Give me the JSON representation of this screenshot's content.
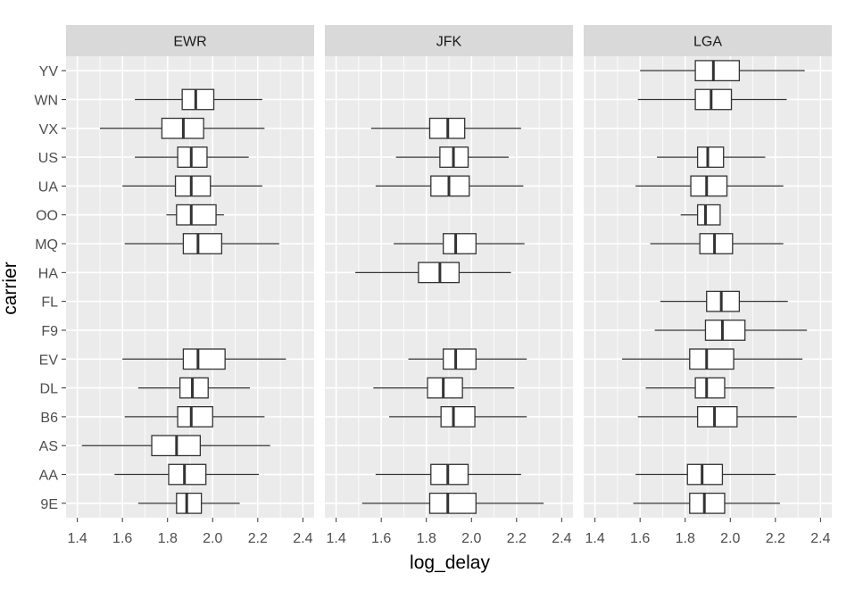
{
  "chart_data": {
    "type": "boxplot",
    "xlabel": "log_delay",
    "ylabel": "carrier",
    "xlim": [
      1.35,
      2.45
    ],
    "xticks": [
      1.4,
      1.6,
      1.8,
      2.0,
      2.2,
      2.4
    ],
    "xtick_labels": [
      "1.4",
      "1.6",
      "1.8",
      "2.0",
      "2.2",
      "2.4"
    ],
    "categories": [
      "YV",
      "WN",
      "VX",
      "US",
      "UA",
      "OO",
      "MQ",
      "HA",
      "FL",
      "F9",
      "EV",
      "DL",
      "B6",
      "AS",
      "AA",
      "9E"
    ],
    "grid": true,
    "colors": {
      "panel_bg": "#ebebeb",
      "strip_bg": "#d9d9d9",
      "grid": "#ffffff",
      "box_fill": "#ffffff",
      "box_line": "#333333",
      "text": "#4d4d4d",
      "title": "#000000"
    },
    "facets": [
      {
        "name": "EWR",
        "boxes": [
          {
            "carrier": "WN",
            "whisker_low": 1.655,
            "q1": 1.865,
            "median": 1.925,
            "q3": 2.005,
            "whisker_high": 2.22
          },
          {
            "carrier": "VX",
            "whisker_low": 1.5,
            "q1": 1.775,
            "median": 1.87,
            "q3": 1.96,
            "whisker_high": 2.23
          },
          {
            "carrier": "US",
            "whisker_low": 1.655,
            "q1": 1.845,
            "median": 1.905,
            "q3": 1.975,
            "whisker_high": 2.16
          },
          {
            "carrier": "UA",
            "whisker_low": 1.6,
            "q1": 1.835,
            "median": 1.905,
            "q3": 1.99,
            "whisker_high": 2.22
          },
          {
            "carrier": "OO",
            "whisker_low": 1.795,
            "q1": 1.84,
            "median": 1.905,
            "q3": 2.015,
            "whisker_high": 2.05
          },
          {
            "carrier": "MQ",
            "whisker_low": 1.61,
            "q1": 1.87,
            "median": 1.935,
            "q3": 2.04,
            "whisker_high": 2.295
          },
          {
            "carrier": "EV",
            "whisker_low": 1.6,
            "q1": 1.87,
            "median": 1.935,
            "q3": 2.055,
            "whisker_high": 2.325
          },
          {
            "carrier": "DL",
            "whisker_low": 1.67,
            "q1": 1.855,
            "median": 1.91,
            "q3": 1.98,
            "whisker_high": 2.165
          },
          {
            "carrier": "B6",
            "whisker_low": 1.61,
            "q1": 1.845,
            "median": 1.905,
            "q3": 2.0,
            "whisker_high": 2.23
          },
          {
            "carrier": "AS",
            "whisker_low": 1.42,
            "q1": 1.73,
            "median": 1.84,
            "q3": 1.945,
            "whisker_high": 2.255
          },
          {
            "carrier": "AA",
            "whisker_low": 1.565,
            "q1": 1.805,
            "median": 1.875,
            "q3": 1.97,
            "whisker_high": 2.205
          },
          {
            "carrier": "9E",
            "whisker_low": 1.67,
            "q1": 1.84,
            "median": 1.885,
            "q3": 1.95,
            "whisker_high": 2.12
          }
        ]
      },
      {
        "name": "JFK",
        "boxes": [
          {
            "carrier": "VX",
            "whisker_low": 1.555,
            "q1": 1.815,
            "median": 1.895,
            "q3": 1.97,
            "whisker_high": 2.22
          },
          {
            "carrier": "US",
            "whisker_low": 1.665,
            "q1": 1.86,
            "median": 1.92,
            "q3": 1.985,
            "whisker_high": 2.165
          },
          {
            "carrier": "UA",
            "whisker_low": 1.575,
            "q1": 1.82,
            "median": 1.9,
            "q3": 1.99,
            "whisker_high": 2.23
          },
          {
            "carrier": "MQ",
            "whisker_low": 1.655,
            "q1": 1.875,
            "median": 1.93,
            "q3": 2.02,
            "whisker_high": 2.235
          },
          {
            "carrier": "HA",
            "whisker_low": 1.485,
            "q1": 1.765,
            "median": 1.86,
            "q3": 1.945,
            "whisker_high": 2.175
          },
          {
            "carrier": "EV",
            "whisker_low": 1.72,
            "q1": 1.875,
            "median": 1.93,
            "q3": 2.02,
            "whisker_high": 2.245
          },
          {
            "carrier": "DL",
            "whisker_low": 1.565,
            "q1": 1.805,
            "median": 1.875,
            "q3": 1.96,
            "whisker_high": 2.19
          },
          {
            "carrier": "B6",
            "whisker_low": 1.635,
            "q1": 1.865,
            "median": 1.92,
            "q3": 2.015,
            "whisker_high": 2.245
          },
          {
            "carrier": "AA",
            "whisker_low": 1.575,
            "q1": 1.82,
            "median": 1.895,
            "q3": 1.985,
            "whisker_high": 2.22
          },
          {
            "carrier": "9E",
            "whisker_low": 1.515,
            "q1": 1.815,
            "median": 1.895,
            "q3": 2.02,
            "whisker_high": 2.32
          }
        ]
      },
      {
        "name": "LGA",
        "boxes": [
          {
            "carrier": "YV",
            "whisker_low": 1.6,
            "q1": 1.845,
            "median": 1.925,
            "q3": 2.04,
            "whisker_high": 2.33
          },
          {
            "carrier": "WN",
            "whisker_low": 1.59,
            "q1": 1.845,
            "median": 1.915,
            "q3": 2.005,
            "whisker_high": 2.25
          },
          {
            "carrier": "US",
            "whisker_low": 1.675,
            "q1": 1.855,
            "median": 1.9,
            "q3": 1.97,
            "whisker_high": 2.155
          },
          {
            "carrier": "UA",
            "whisker_low": 1.58,
            "q1": 1.825,
            "median": 1.895,
            "q3": 1.985,
            "whisker_high": 2.235
          },
          {
            "carrier": "OO",
            "whisker_low": 1.78,
            "q1": 1.855,
            "median": 1.89,
            "q3": 1.955,
            "whisker_high": 1.955
          },
          {
            "carrier": "MQ",
            "whisker_low": 1.645,
            "q1": 1.865,
            "median": 1.93,
            "q3": 2.01,
            "whisker_high": 2.235
          },
          {
            "carrier": "FL",
            "whisker_low": 1.69,
            "q1": 1.895,
            "median": 1.96,
            "q3": 2.04,
            "whisker_high": 2.255
          },
          {
            "carrier": "F9",
            "whisker_low": 1.665,
            "q1": 1.89,
            "median": 1.965,
            "q3": 2.065,
            "whisker_high": 2.34
          },
          {
            "carrier": "EV",
            "whisker_low": 1.52,
            "q1": 1.82,
            "median": 1.895,
            "q3": 2.015,
            "whisker_high": 2.32
          },
          {
            "carrier": "DL",
            "whisker_low": 1.625,
            "q1": 1.845,
            "median": 1.895,
            "q3": 1.975,
            "whisker_high": 2.195
          },
          {
            "carrier": "B6",
            "whisker_low": 1.59,
            "q1": 1.855,
            "median": 1.93,
            "q3": 2.03,
            "whisker_high": 2.295
          },
          {
            "carrier": "AA",
            "whisker_low": 1.58,
            "q1": 1.81,
            "median": 1.875,
            "q3": 1.965,
            "whisker_high": 2.2
          },
          {
            "carrier": "9E",
            "whisker_low": 1.57,
            "q1": 1.82,
            "median": 1.885,
            "q3": 1.975,
            "whisker_high": 2.22
          }
        ]
      }
    ]
  }
}
